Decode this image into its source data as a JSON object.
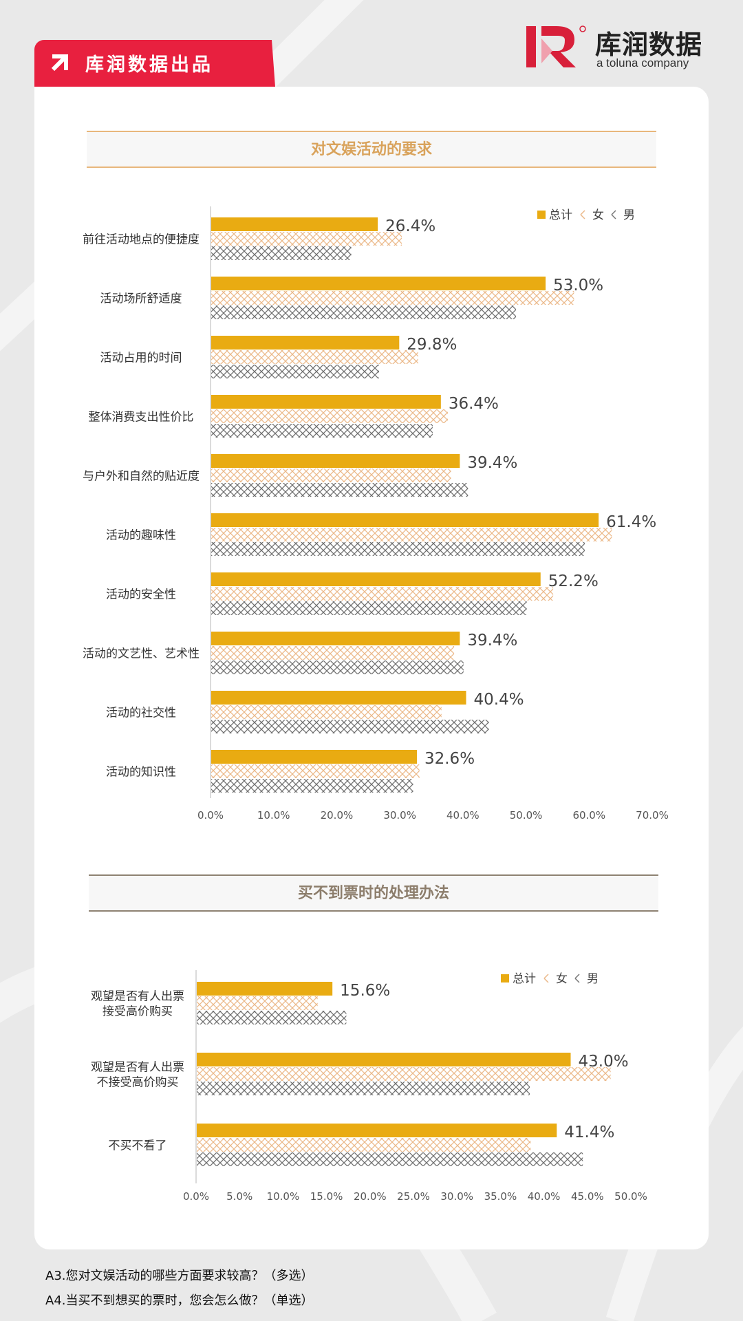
{
  "header": {
    "tag_label": "库润数据出品",
    "brand_name": "库润数据",
    "brand_sub": "a toluna company",
    "brand_mark": "R",
    "colors": {
      "tag": "#e8203f",
      "brand_red": "#d8203a"
    }
  },
  "chart_data": [
    {
      "type": "bar",
      "orientation": "horizontal",
      "title": "对文娱活动的要求",
      "categories": [
        "前往活动地点的便捷度",
        "活动场所舒适度",
        "活动占用的时间",
        "整体消费支出性价比",
        "与户外和自然的贴近度",
        "活动的趣味性",
        "活动的安全性",
        "活动的文艺性、艺术性",
        "活动的社交性",
        "活动的知识性"
      ],
      "series": [
        {
          "name": "总计",
          "values": [
            26.4,
            53.0,
            29.8,
            36.4,
            39.4,
            61.4,
            52.2,
            39.4,
            40.4,
            32.6
          ],
          "color": "#e9ab12",
          "pattern": "solid"
        },
        {
          "name": "女",
          "values": [
            30.2,
            57.5,
            32.8,
            37.5,
            38.0,
            63.5,
            54.2,
            38.5,
            36.5,
            33.0
          ],
          "color": "#ebb98a",
          "pattern": "crosshatch"
        },
        {
          "name": "男",
          "values": [
            22.2,
            48.3,
            26.6,
            35.1,
            40.7,
            59.2,
            50.0,
            40.0,
            44.0,
            32.0
          ],
          "color": "#777777",
          "pattern": "crosshatch"
        }
      ],
      "data_labels": [
        "26.4%",
        "53.0%",
        "29.8%",
        "36.4%",
        "39.4%",
        "61.4%",
        "52.2%",
        "39.4%",
        "40.4%",
        "32.6%"
      ],
      "x_ticks": [
        "0.0%",
        "10.0%",
        "20.0%",
        "30.0%",
        "40.0%",
        "50.0%",
        "60.0%",
        "70.0%"
      ],
      "xlim": [
        0,
        70
      ],
      "legend_position": "top-right"
    },
    {
      "type": "bar",
      "orientation": "horizontal",
      "title": "买不到票时的处理办法",
      "categories": [
        [
          "观望是否有人出票",
          "接受高价购买"
        ],
        [
          "观望是否有人出票",
          "不接受高价购买"
        ],
        [
          "不买不看了"
        ]
      ],
      "series": [
        {
          "name": "总计",
          "values": [
            15.6,
            43.0,
            41.4
          ],
          "color": "#e9ab12",
          "pattern": "solid"
        },
        {
          "name": "女",
          "values": [
            13.9,
            47.6,
            38.4
          ],
          "color": "#ebb98a",
          "pattern": "crosshatch"
        },
        {
          "name": "男",
          "values": [
            17.2,
            38.3,
            44.4
          ],
          "color": "#777777",
          "pattern": "crosshatch"
        }
      ],
      "data_labels": [
        "15.6%",
        "43.0%",
        "41.4%"
      ],
      "x_ticks": [
        "0.0%",
        "5.0%",
        "10.0%",
        "15.0%",
        "20.0%",
        "25.0%",
        "30.0%",
        "35.0%",
        "40.0%",
        "45.0%",
        "50.0%"
      ],
      "xlim": [
        0,
        50
      ],
      "legend_position": "top-right"
    }
  ],
  "footnotes": {
    "q1": "A3.您对文娱活动的哪些方面要求较高？（多选）",
    "q2": "A4.当买不到想买的票时，您会怎么做？（单选）"
  }
}
